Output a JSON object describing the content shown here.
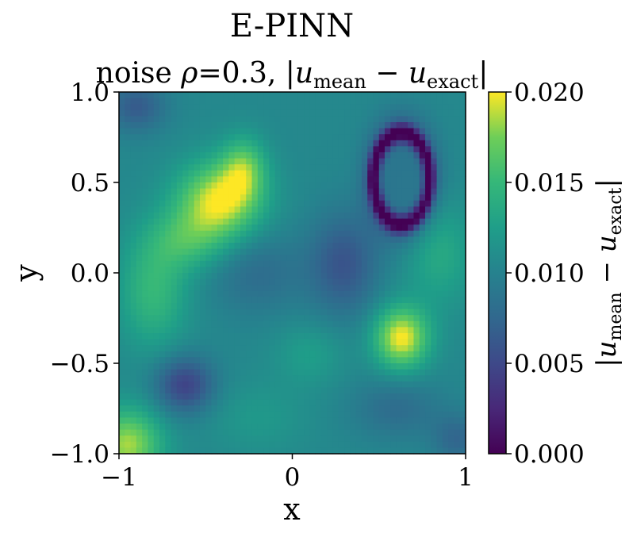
{
  "chart_data": {
    "type": "heatmap",
    "title": "E-PINN",
    "subtitle": {
      "prefix": "noise ",
      "rho_symbol": "ρ",
      "rho_eq": "=0.3, |",
      "u": "u",
      "sub_mean": "mean",
      "minus": " − ",
      "sub_exact": "exact",
      "close_bar": "|"
    },
    "xlabel": "x",
    "ylabel": "y",
    "xlim": [
      -1,
      1
    ],
    "ylim": [
      -1,
      1
    ],
    "xticks": [
      {
        "value": -1,
        "label": "−1"
      },
      {
        "value": 0,
        "label": "0"
      },
      {
        "value": 1,
        "label": "1"
      }
    ],
    "yticks": [
      {
        "value": 1.0,
        "label": "1.0"
      },
      {
        "value": 0.5,
        "label": "0.5"
      },
      {
        "value": 0.0,
        "label": "0.0"
      },
      {
        "value": -0.5,
        "label": "−0.5"
      },
      {
        "value": -1.0,
        "label": "−1.0"
      }
    ],
    "colormap": "viridis",
    "colorbar": {
      "range": [
        0,
        0.02
      ],
      "ticks": [
        {
          "value": 0.02,
          "label": "0.020"
        },
        {
          "value": 0.015,
          "label": "0.015"
        },
        {
          "value": 0.01,
          "label": "0.010"
        },
        {
          "value": 0.005,
          "label": "0.005"
        },
        {
          "value": 0.0,
          "label": "0.000"
        }
      ],
      "label": {
        "open_bar": "|",
        "u": "u",
        "sub_mean": "mean",
        "minus": " − ",
        "sub_exact": "exact",
        "close_bar": "|"
      }
    },
    "grid_resolution": 60,
    "field": {
      "base": 0.0105,
      "features": [
        {
          "x": -0.42,
          "y": 0.4,
          "sx": 0.17,
          "sy": 0.15,
          "amp": 0.0092
        },
        {
          "x": -0.28,
          "y": 0.58,
          "sx": 0.09,
          "sy": 0.12,
          "amp": 0.0055
        },
        {
          "x": -0.6,
          "y": 0.18,
          "sx": 0.16,
          "sy": 0.12,
          "amp": 0.004
        },
        {
          "x": -0.8,
          "y": -0.1,
          "sx": 0.14,
          "sy": 0.22,
          "amp": 0.0045
        },
        {
          "x": 0.63,
          "y": -0.36,
          "sx": 0.11,
          "sy": 0.12,
          "amp": 0.0095
        },
        {
          "x": -0.95,
          "y": -0.95,
          "sx": 0.14,
          "sy": 0.14,
          "amp": 0.008
        },
        {
          "x": -0.62,
          "y": -0.62,
          "sx": 0.12,
          "sy": 0.11,
          "amp": -0.006
        },
        {
          "x": 0.3,
          "y": 0.05,
          "sx": 0.14,
          "sy": 0.2,
          "amp": -0.0045
        },
        {
          "x": -0.2,
          "y": 0.0,
          "sx": 0.2,
          "sy": 0.16,
          "amp": -0.0025
        },
        {
          "x": 0.1,
          "y": -0.45,
          "sx": 0.14,
          "sy": 0.12,
          "amp": 0.002
        },
        {
          "x": 0.6,
          "y": -0.75,
          "sx": 0.18,
          "sy": 0.12,
          "amp": -0.0025
        },
        {
          "x": -0.2,
          "y": -0.8,
          "sx": 0.2,
          "sy": 0.14,
          "amp": 0.0015
        },
        {
          "x": 0.85,
          "y": 0.1,
          "sx": 0.14,
          "sy": 0.2,
          "amp": 0.003
        },
        {
          "x": -0.9,
          "y": 0.92,
          "sx": 0.12,
          "sy": 0.1,
          "amp": -0.004
        },
        {
          "x": 0.95,
          "y": -0.92,
          "sx": 0.1,
          "sy": 0.1,
          "amp": -0.003
        }
      ],
      "zero_ring": {
        "x": 0.63,
        "y": 0.52,
        "rx": 0.16,
        "ry": 0.25,
        "width": 0.035,
        "depth": 0.0095,
        "outer_low": 0.003,
        "inner_level": 0.008
      }
    }
  }
}
